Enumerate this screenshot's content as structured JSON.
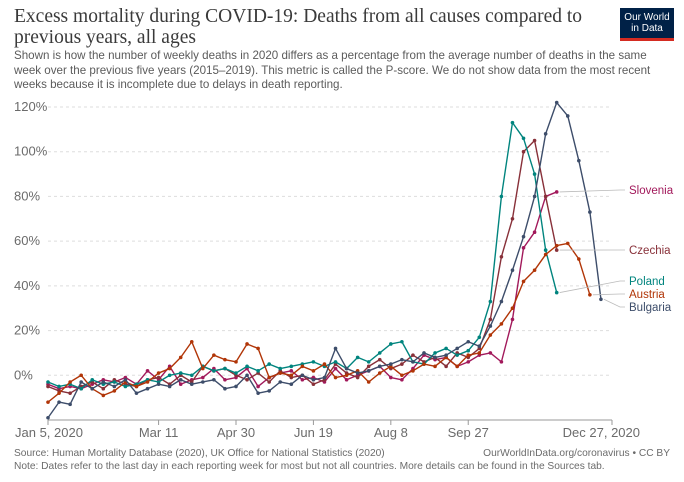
{
  "header": {
    "title": "Excess mortality during COVID-19: Deaths from all causes compared to previous years, all ages",
    "subtitle": "Shown is how the number of weekly deaths in 2020 differs as a percentage from the average number of deaths in the same week over the previous five years (2015–2019). This metric is called the P-score. We do not show data from the most recent weeks because it is incomplete due to delays in death reporting.",
    "logo_line1": "Our World",
    "logo_line2": "in Data"
  },
  "footer": {
    "source": "Source: Human Mortality Database (2020), UK Office for National Statistics (2020)",
    "url": "OurWorldInData.org/coronavirus • CC BY",
    "note": "Note: Dates refer to the last day in each reporting week for most but not all countries. More details can be found in the Sources tab."
  },
  "chart_data": {
    "type": "line",
    "xlabel": "",
    "ylabel": "",
    "x_unit": "week of 2020 (week 1 ends Jan 5)",
    "xlim": [
      1,
      52
    ],
    "ylim": [
      -20,
      120
    ],
    "y_ticks": [
      0,
      20,
      40,
      60,
      80,
      100,
      120
    ],
    "y_tick_labels": [
      "0%",
      "20%",
      "40%",
      "60%",
      "80%",
      "100%",
      "120%"
    ],
    "x_ticks": [
      1,
      11,
      18,
      25,
      32,
      39,
      52
    ],
    "x_tick_labels": [
      "Jan 5, 2020",
      "Mar 11",
      "Apr 30",
      "Jun 19",
      "Aug 8",
      "Sep 27",
      "Dec 27, 2020"
    ],
    "grid": "horizontal dashed",
    "legend": "right, labels at line ends",
    "series": [
      {
        "name": "Slovenia",
        "color": "#a2195b",
        "start_week": 1,
        "values": [
          -4,
          -6,
          -5,
          -6,
          -4,
          -2,
          -3,
          -1,
          -4,
          2,
          -2,
          4,
          -4,
          -2,
          -1,
          3,
          -2,
          -1,
          3,
          -5,
          -1,
          1,
          2,
          -2,
          -1,
          -3,
          3,
          -2,
          0,
          2,
          4,
          -1,
          -2,
          3,
          9,
          7,
          8,
          4,
          6,
          9,
          10,
          6,
          25,
          57,
          64,
          80,
          82
        ]
      },
      {
        "name": "Czechia",
        "color": "#883039",
        "start_week": 1,
        "values": [
          -5,
          -7,
          -8,
          -5,
          -3,
          -6,
          -2,
          -4,
          -5,
          -2,
          -1,
          -4,
          0,
          -3,
          4,
          2,
          3,
          0,
          -2,
          1,
          -3,
          2,
          -1,
          0,
          -4,
          -2,
          5,
          1,
          -1,
          4,
          7,
          3,
          5,
          9,
          6,
          8,
          4,
          10,
          8,
          12,
          25,
          53,
          70,
          100,
          105,
          80,
          56
        ]
      },
      {
        "name": "Poland",
        "color": "#00847e",
        "start_week": 1,
        "values": [
          -3,
          -5,
          -4,
          -6,
          -2,
          -4,
          -3,
          -5,
          -4,
          -2,
          -3,
          0,
          1,
          0,
          4,
          2,
          3,
          1,
          4,
          2,
          5,
          3,
          4,
          5,
          6,
          4,
          6,
          3,
          8,
          6,
          10,
          14,
          15,
          6,
          5,
          10,
          12,
          9,
          11,
          17,
          33,
          80,
          113,
          106,
          90,
          56,
          37
        ]
      },
      {
        "name": "Austria",
        "color": "#b13507",
        "start_week": 1,
        "values": [
          -12,
          -8,
          -3,
          0,
          -6,
          -9,
          -7,
          -3,
          -5,
          -3,
          1,
          3,
          8,
          15,
          3,
          9,
          7,
          6,
          14,
          12,
          -1,
          1,
          0,
          4,
          2,
          5,
          -1,
          0,
          2,
          -3,
          1,
          4,
          0,
          2,
          5,
          4,
          8,
          4,
          9,
          10,
          18,
          23,
          30,
          42,
          47,
          54,
          58,
          59,
          52,
          36
        ]
      },
      {
        "name": "Bulgaria",
        "color": "#3d4d6a",
        "start_week": 1,
        "values": [
          -19,
          -12,
          -13,
          -3,
          -6,
          -3,
          -5,
          -2,
          -8,
          -6,
          -4,
          -5,
          -2,
          -4,
          -3,
          -2,
          -6,
          -5,
          0,
          -8,
          -7,
          -3,
          -4,
          0,
          -2,
          -1,
          12,
          3,
          1,
          2,
          4,
          5,
          7,
          6,
          10,
          8,
          9,
          12,
          15,
          13,
          22,
          33,
          47,
          62,
          80,
          108,
          122,
          116,
          96,
          73,
          34
        ]
      }
    ]
  }
}
